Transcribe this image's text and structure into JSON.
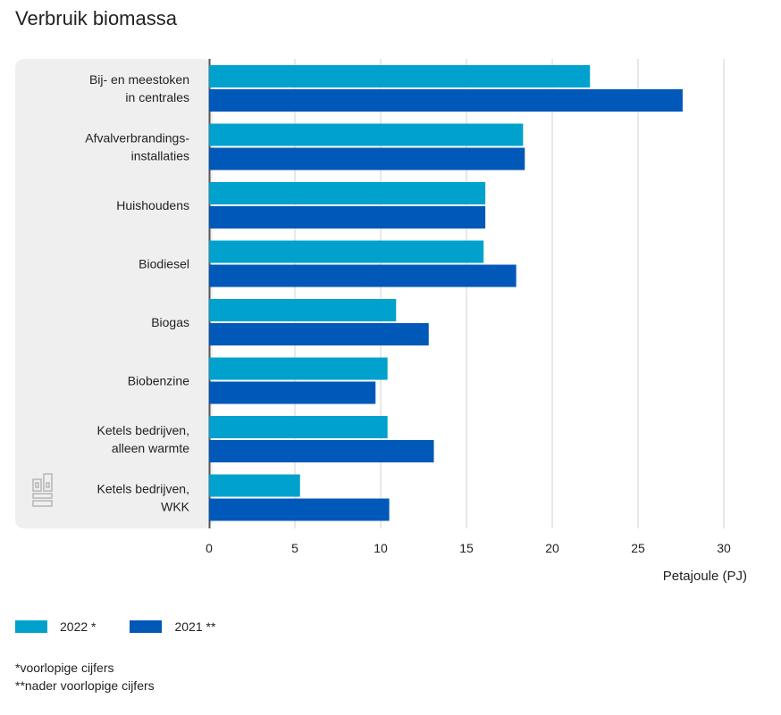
{
  "chart_data": {
    "type": "bar",
    "orientation": "horizontal",
    "title": "Verbruik biomassa",
    "xlabel": "Petajoule (PJ)",
    "xlim": [
      0,
      32
    ],
    "xticks": [
      0,
      5,
      10,
      15,
      20,
      25,
      30
    ],
    "grid": true,
    "legend_position": "bottom-left",
    "categories": [
      [
        "Bij- en meestoken",
        "in centrales"
      ],
      [
        "Afvalverbrandings-",
        "installaties"
      ],
      [
        "Huishoudens"
      ],
      [
        "Biodiesel"
      ],
      [
        "Biogas"
      ],
      [
        "Biobenzine"
      ],
      [
        "Ketels bedrijven,",
        "alleen warmte"
      ],
      [
        "Ketels bedrijven,",
        "WKK"
      ]
    ],
    "series": [
      {
        "name": "2022 *",
        "color": "#00a1cd",
        "values": [
          22.2,
          18.3,
          16.1,
          16.0,
          10.9,
          10.4,
          10.4,
          5.3
        ]
      },
      {
        "name": "2021 **",
        "color": "#0058b8",
        "values": [
          27.6,
          18.4,
          16.1,
          17.9,
          12.8,
          9.7,
          13.1,
          10.5
        ]
      }
    ]
  },
  "footnotes": [
    "*voorlopige cijfers",
    "**nader voorlopige cijfers"
  ],
  "logo_icon": "cbs-logo-icon",
  "colors": {
    "panel_background": "#efefef",
    "grid": "#d0d0d0",
    "axis": "#555555"
  }
}
